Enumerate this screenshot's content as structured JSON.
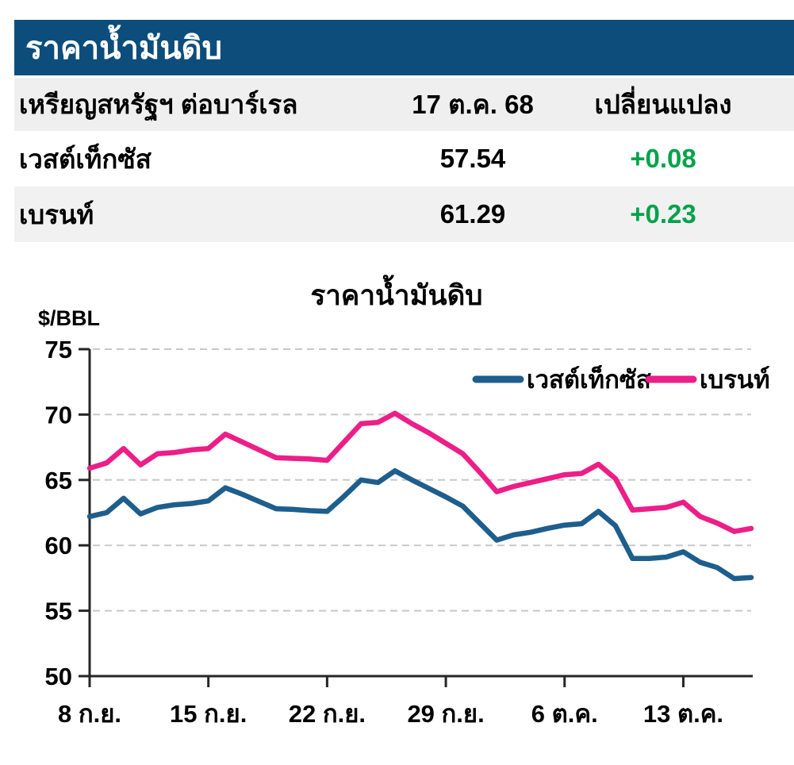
{
  "header": {
    "title": "ราคาน้ำมันดิบ"
  },
  "table": {
    "header": {
      "unit": "เหรียญสหรัฐฯ ต่อบาร์เรล",
      "date": "17 ต.ค. 68",
      "change": "เปลี่ยนแปลง"
    },
    "rows": [
      {
        "name": "เวสต์เท็กซัส",
        "value": "57.54",
        "change": "+0.08",
        "direction": "up"
      },
      {
        "name": "เบรนท์",
        "value": "61.29",
        "change": "+0.23",
        "direction": "up"
      }
    ]
  },
  "colors": {
    "header_bar": "#0d4d7c",
    "row_gray": "#efefef",
    "positive_green": "#00a24a",
    "wti_blue": "#1e5e8c",
    "brent_pink": "#ec1e87",
    "grid_gray": "#c8c8c8",
    "axis_black": "#262626"
  },
  "chart_data": {
    "type": "line",
    "title": "ราคาน้ำมันดิบ",
    "ylabel": "$/BBL",
    "xlabel": "",
    "ylim": [
      50,
      75
    ],
    "ytick_step": 5,
    "ytick_labels": [
      "75",
      "70",
      "65",
      "60",
      "55",
      "50"
    ],
    "grid": "dashed-horizontal",
    "legend_position": "inside-top-right",
    "x_count": 40,
    "xtick_indices": [
      0,
      7,
      14,
      21,
      28,
      35
    ],
    "xtick_labels": [
      "8 ก.ย.",
      "15 ก.ย.",
      "22 ก.ย.",
      "29 ก.ย.",
      "6 ต.ค.",
      "13 ต.ค."
    ],
    "series": [
      {
        "name": "เวสต์เท็กซัส",
        "color": "#1e5e8c",
        "values": [
          62.2,
          62.5,
          63.6,
          62.4,
          62.9,
          63.1,
          63.2,
          63.4,
          64.4,
          63.9,
          63.35,
          62.8,
          62.75,
          62.65,
          62.6,
          63.75,
          65.0,
          64.8,
          65.7,
          65.0,
          64.35,
          63.7,
          63.0,
          61.7,
          60.4,
          60.8,
          61.0,
          61.3,
          61.55,
          61.65,
          62.6,
          61.5,
          59.0,
          59.0,
          59.1,
          59.5,
          58.7,
          58.3,
          57.46,
          57.54
        ]
      },
      {
        "name": "เบรนท์",
        "color": "#ec1e87",
        "values": [
          65.9,
          66.3,
          67.4,
          66.15,
          67.0,
          67.1,
          67.3,
          67.4,
          68.5,
          67.9,
          67.3,
          66.7,
          66.65,
          66.6,
          66.5,
          67.9,
          69.3,
          69.4,
          70.1,
          69.3,
          68.6,
          67.8,
          67.0,
          65.6,
          64.1,
          64.5,
          64.8,
          65.1,
          65.4,
          65.5,
          66.2,
          65.1,
          62.7,
          62.8,
          62.9,
          63.3,
          62.2,
          61.7,
          61.06,
          61.29
        ]
      }
    ]
  }
}
